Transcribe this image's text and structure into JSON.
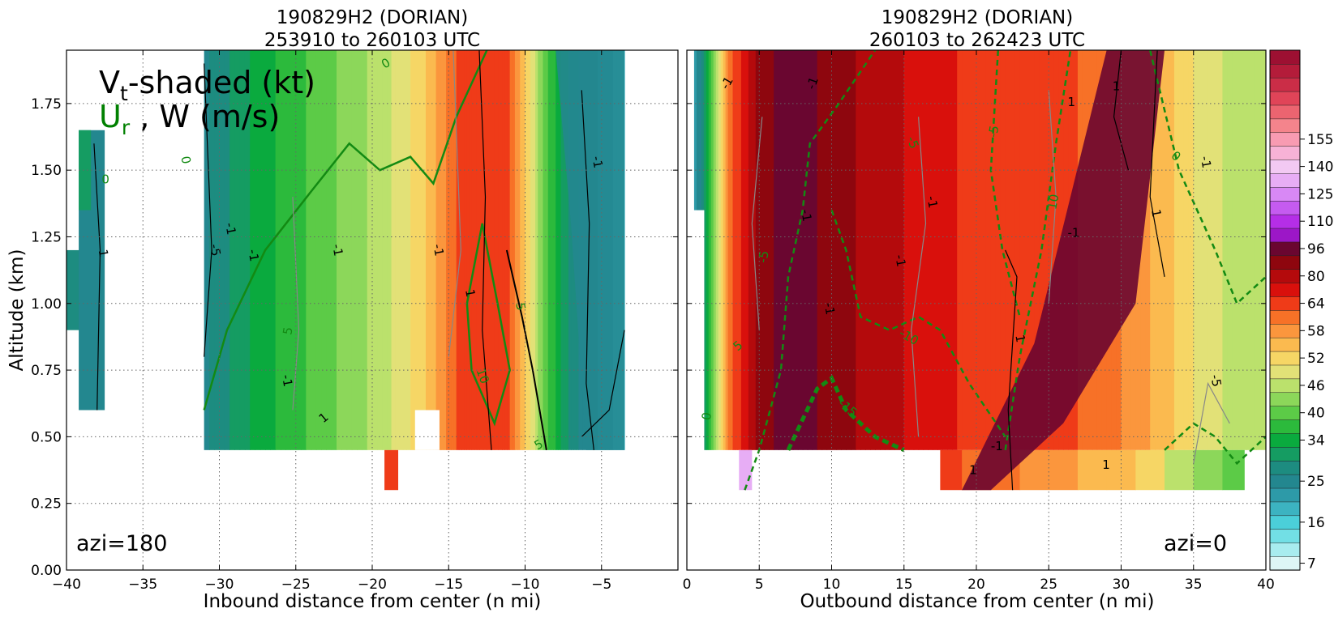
{
  "chart_data": [
    {
      "type": "heatmap",
      "title_line1": "190829H2 (DORIAN)",
      "title_line2": "253910 to 260103 UTC",
      "xlabel": "Inbound distance from center (n mi)",
      "ylabel": "Altitude (km)",
      "xlim": [
        -40,
        0
      ],
      "ylim": [
        0,
        1.95
      ],
      "xticks": [
        "−40",
        "−35",
        "−30",
        "−25",
        "−20",
        "−15",
        "−10",
        "−5"
      ],
      "yticks": [
        "0.00",
        "0.25",
        "0.50",
        "0.75",
        "1.00",
        "1.25",
        "1.50",
        "1.75"
      ],
      "grid": true,
      "annotation": "azi=180",
      "legend_line1": "V",
      "legend_sub1": "t",
      "legend_rest1": "-shaded (kt)",
      "legend_line2": "U",
      "legend_sub2": "r",
      "legend_rest2": " , W (m/s)",
      "profile": [
        {
          "x": -31,
          "v": 27
        },
        {
          "x": -29,
          "v": 32
        },
        {
          "x": -27,
          "v": 36
        },
        {
          "x": -25,
          "v": 39
        },
        {
          "x": -23,
          "v": 42
        },
        {
          "x": -21,
          "v": 45
        },
        {
          "x": -19,
          "v": 48
        },
        {
          "x": -17.5,
          "v": 52
        },
        {
          "x": -16,
          "v": 57
        },
        {
          "x": -15,
          "v": 62
        },
        {
          "x": -14,
          "v": 66
        },
        {
          "x": -13,
          "v": 70
        },
        {
          "x": -11.5,
          "v": 67
        },
        {
          "x": -10.5,
          "v": 60
        },
        {
          "x": -9.5,
          "v": 50
        },
        {
          "x": -8.5,
          "v": 40
        },
        {
          "x": -7.5,
          "v": 33
        },
        {
          "x": -6.5,
          "v": 28
        },
        {
          "x": -5,
          "v": 24
        },
        {
          "x": -3.5,
          "v": 20
        }
      ],
      "contour_labels": [
        "0",
        "0",
        "5",
        "-1",
        "-1",
        "-1",
        "-1",
        "1",
        "10",
        "5",
        "-5",
        "1",
        "5",
        "-1",
        "1",
        "0",
        "-1"
      ]
    },
    {
      "type": "heatmap",
      "title_line1": "190829H2 (DORIAN)",
      "title_line2": "260103 to 262423 UTC",
      "xlabel": "Outbound distance from center (n mi)",
      "xlim": [
        0,
        40
      ],
      "ylim": [
        0,
        1.95
      ],
      "xticks": [
        "0",
        "5",
        "10",
        "15",
        "20",
        "25",
        "30",
        "35",
        "40"
      ],
      "grid": true,
      "annotation": "azi=0",
      "profile": [
        {
          "x": 0.5,
          "v": 22
        },
        {
          "x": 1.5,
          "v": 36
        },
        {
          "x": 2.5,
          "v": 55
        },
        {
          "x": 3.5,
          "v": 70
        },
        {
          "x": 5,
          "v": 92
        },
        {
          "x": 7,
          "v": 100
        },
        {
          "x": 9,
          "v": 96
        },
        {
          "x": 11,
          "v": 90
        },
        {
          "x": 13,
          "v": 84
        },
        {
          "x": 15,
          "v": 80
        },
        {
          "x": 17,
          "v": 75
        },
        {
          "x": 19,
          "v": 71
        },
        {
          "x": 21,
          "v": 68
        },
        {
          "x": 23,
          "v": 66
        },
        {
          "x": 25,
          "v": 65
        },
        {
          "x": 27,
          "v": 64
        },
        {
          "x": 29,
          "v": 62
        },
        {
          "x": 31,
          "v": 60
        },
        {
          "x": 33,
          "v": 56
        },
        {
          "x": 35,
          "v": 52
        },
        {
          "x": 37,
          "v": 49
        },
        {
          "x": 39,
          "v": 47
        },
        {
          "x": 40,
          "v": 46
        }
      ],
      "contour_labels": [
        "-1",
        "-1",
        "-1",
        "1",
        "-5",
        "-5",
        "5",
        "10",
        "-1",
        "-1",
        "-1",
        "1",
        "-10",
        "-15",
        "-5",
        "1",
        "1",
        "1",
        "1",
        "0",
        "0",
        "-1",
        "-1",
        "-5",
        "-1"
      ]
    },
    {
      "type": "colorbar",
      "label_values": [
        "155",
        "140",
        "125",
        "110",
        "96",
        "80",
        "64",
        "58",
        "52",
        "46",
        "40",
        "34",
        "25",
        "16",
        "7"
      ],
      "levels": [
        7,
        10,
        13,
        16,
        19,
        22,
        25,
        28,
        31,
        34,
        37,
        40,
        43,
        46,
        49,
        52,
        55,
        58,
        61,
        64,
        72,
        80,
        88,
        96,
        103,
        110,
        118,
        125,
        133,
        140,
        148,
        155,
        162
      ],
      "colors": [
        "#ddf6f6",
        "#a8ecef",
        "#72dfe5",
        "#4bcfd9",
        "#3cb3c1",
        "#2d9aa8",
        "#23878f",
        "#1d8c80",
        "#159c62",
        "#0aaa3e",
        "#2cba3c",
        "#5ccb47",
        "#8cd75a",
        "#bbe16c",
        "#e2e177",
        "#f6d665",
        "#fbba4f",
        "#fb963d",
        "#f77127",
        "#ef3b18",
        "#d9100c",
        "#b40a0c",
        "#8e060e",
        "#6a0630",
        "#9c17c7",
        "#b52ee7",
        "#c55bf0",
        "#d888f5",
        "#e7adf5",
        "#f2c9f3",
        "#f7b2d6",
        "#f89bb2",
        "#f4848c",
        "#ec6470",
        "#e04458",
        "#cb2d47",
        "#b41c3a",
        "#9d1032"
      ]
    }
  ]
}
